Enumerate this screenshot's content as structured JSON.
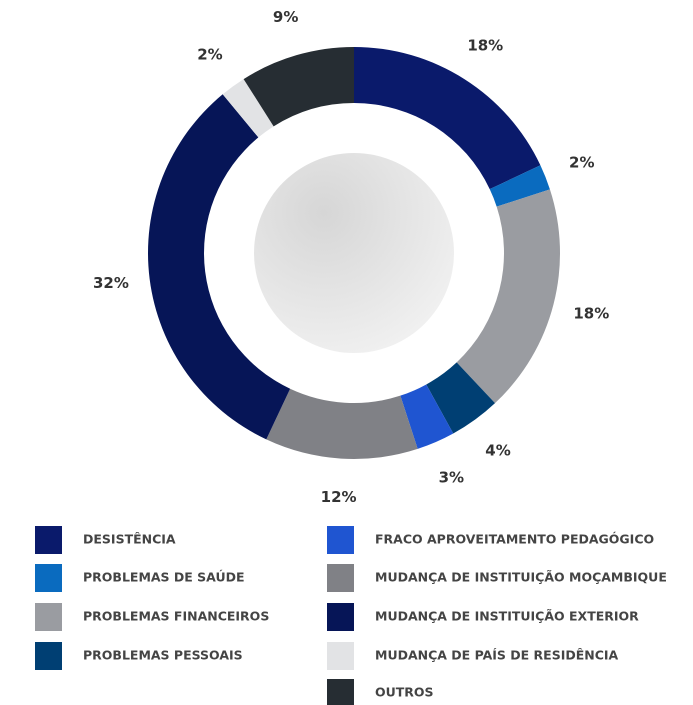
{
  "chart_data": {
    "type": "donut",
    "categories": [
      "DESISTÊNCIA",
      "PROBLEMAS DE SAÚDE",
      "PROBLEMAS FINANCEIROS",
      "PROBLEMAS PESSOAIS",
      "FRACO APROVEITAMENTO PEDAGÓGICO",
      "MUDANÇA DE INSTITUIÇÃO MOÇAMBIQUE",
      "MUDANÇA DE INSTITUIÇÃO EXTERIOR",
      "MUDANÇA DE PAÍS DE RESIDÊNCIA",
      "OUTROS"
    ],
    "values": [
      18,
      2,
      18,
      4,
      3,
      12,
      32,
      2,
      9
    ],
    "value_labels": [
      "18%",
      "2%",
      "18%",
      "4%",
      "3%",
      "12%",
      "32%",
      "2%",
      "9%"
    ],
    "colors": [
      "#0a1a6b",
      "#0a6bbf",
      "#9a9ca1",
      "#003f73",
      "#1f55d1",
      "#808186",
      "#061557",
      "#e2e3e5",
      "#262d33"
    ]
  }
}
